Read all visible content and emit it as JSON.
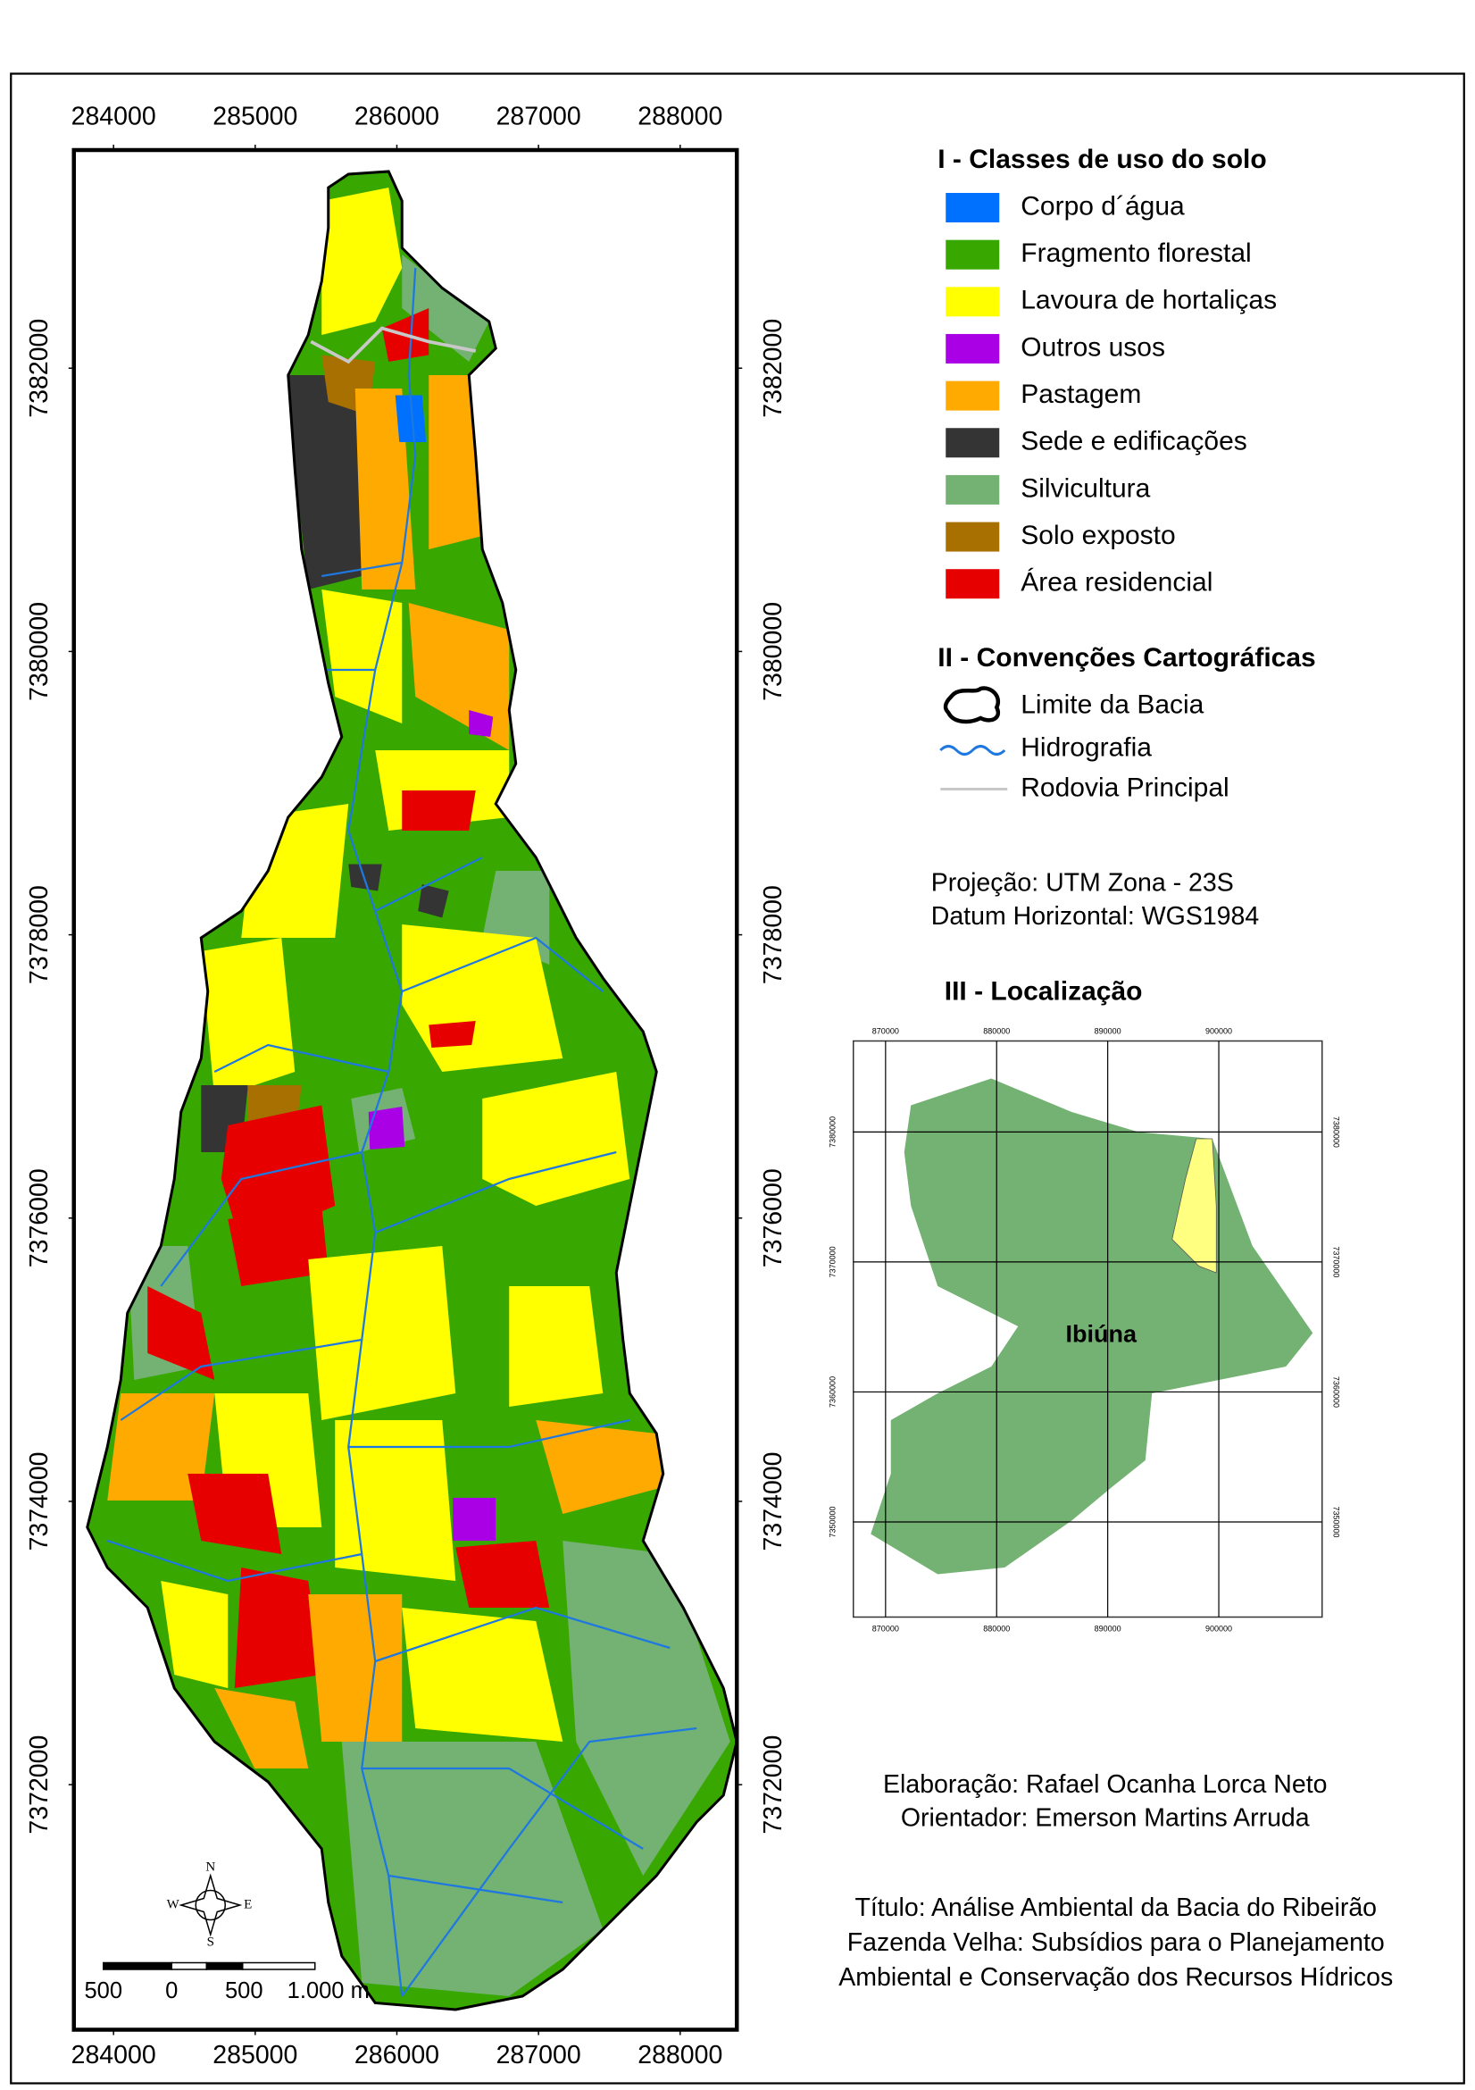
{
  "map": {
    "xlim": [
      283720,
      288400
    ],
    "ylim": [
      7370270,
      7383540
    ],
    "xticks": [
      284000,
      285000,
      286000,
      287000,
      288000
    ],
    "yticks": [
      7372000,
      7374000,
      7376000,
      7378000,
      7380000,
      7382000
    ]
  },
  "legend": {
    "title": "I - Classes de uso do solo",
    "items": [
      {
        "label": "Corpo d´água",
        "color": "#0070ff"
      },
      {
        "label": "Fragmento florestal",
        "color": "#38a800"
      },
      {
        "label": "Lavoura de hortaliças",
        "color": "#ffff00"
      },
      {
        "label": "Outros usos",
        "color": "#a900e6"
      },
      {
        "label": "Pastagem",
        "color": "#ffaa00"
      },
      {
        "label": "Sede e edificações",
        "color": "#343434"
      },
      {
        "label": "Silvicultura",
        "color": "#73b273"
      },
      {
        "label": "Solo exposto",
        "color": "#a87000"
      },
      {
        "label": "Área residencial",
        "color": "#e60000"
      }
    ]
  },
  "conventions": {
    "title": "II - Convenções Cartográficas",
    "items": [
      "Limite da Bacia",
      "Hidrografia",
      "Rodovia Principal"
    ]
  },
  "projection": [
    "Projeção: UTM Zona - 23S",
    "Datum Horizontal: WGS1984"
  ],
  "location": {
    "title": "III - Localização",
    "label": "Ibiúna",
    "xlim": [
      867100,
      909300
    ],
    "ylim": [
      7342680,
      7387000
    ],
    "xticks": [
      870000,
      880000,
      890000,
      900000
    ],
    "yticks": [
      7350000,
      7360000,
      7370000,
      7380000
    ]
  },
  "credits": [
    "Elaboração: Rafael Ocanha Lorca Neto",
    "Orientador: Emerson Martins Arruda"
  ],
  "title_lines": [
    "Título: Análise Ambiental da Bacia do Ribeirão",
    "Fazenda Velha: Subsídios para o Planejamento",
    "Ambiental e Conservação dos Recursos Hídricos"
  ],
  "scale_bar": {
    "labels": [
      "500",
      "0",
      "500",
      "1.000 m"
    ]
  },
  "compass": [
    "N",
    "W",
    "E",
    "S"
  ]
}
